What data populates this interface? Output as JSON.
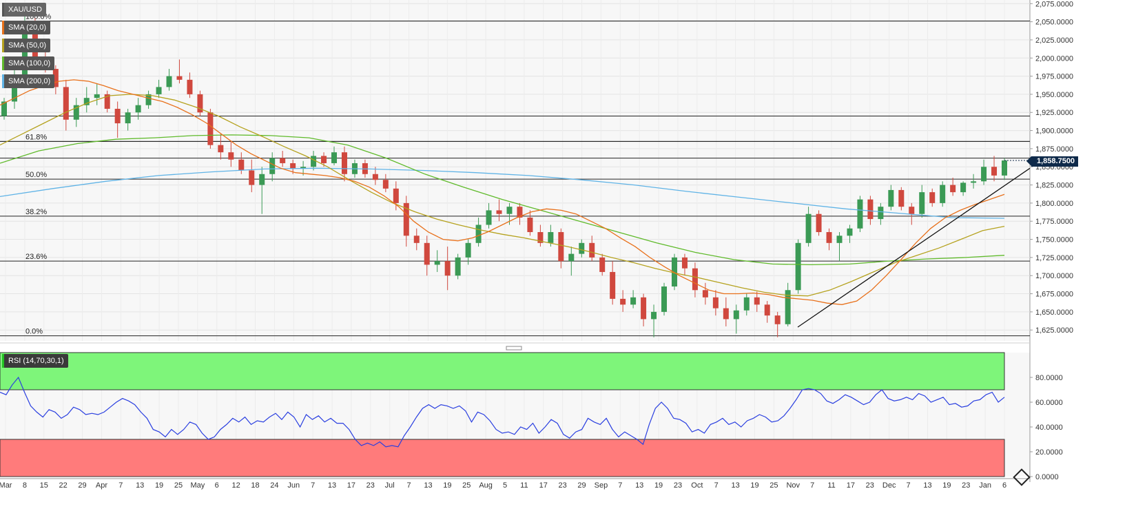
{
  "chart_data": [
    {
      "type": "candlestick",
      "symbol": "XAU/USD",
      "indicators": [
        {
          "label": "SMA (20,0)",
          "color": "#e8701a"
        },
        {
          "label": "SMA (50,0)",
          "color": "#b5a21e"
        },
        {
          "label": "SMA (100,0)",
          "color": "#5fba2a"
        },
        {
          "label": "SMA (200,0)",
          "color": "#5fb3e6"
        }
      ],
      "ylim": [
        1610,
        2080
      ],
      "y_ticks": [
        "2,075.0000",
        "2,050.0000",
        "2,025.0000",
        "2,000.0000",
        "1,975.0000",
        "1,950.0000",
        "1,925.0000",
        "1,900.0000",
        "1,875.0000",
        "1,850.0000",
        "1,825.0000",
        "1,800.0000",
        "1,775.0000",
        "1,750.0000",
        "1,725.0000",
        "1,700.0000",
        "1,675.0000",
        "1,650.0000",
        "1,625.0000"
      ],
      "x_tick_labels": [
        "Mar",
        "8",
        "15",
        "22",
        "29",
        "Apr",
        "7",
        "13",
        "19",
        "25",
        "May",
        "6",
        "12",
        "18",
        "24",
        "Jun",
        "7",
        "13",
        "17",
        "23",
        "Jul",
        "7",
        "13",
        "19",
        "25",
        "Aug",
        "5",
        "11",
        "17",
        "23",
        "29",
        "Sep",
        "7",
        "13",
        "19",
        "23",
        "Oct",
        "7",
        "13",
        "19",
        "25",
        "Nov",
        "7",
        "11",
        "17",
        "23",
        "Dec",
        "7",
        "13",
        "19",
        "23",
        "Jan",
        "6"
      ],
      "last_price": {
        "label": "1,858.7500",
        "value": 1858.75
      },
      "horizontal_levels": [
        2051,
        1920,
        1885,
        1862
      ],
      "fibonacci": [
        {
          "label": "100.0%",
          "value": 2051
        },
        {
          "label": "61.8%",
          "value": 1885
        },
        {
          "label": "50.0%",
          "value": 1833
        },
        {
          "label": "38.2%",
          "value": 1782
        },
        {
          "label": "23.6%",
          "value": 1720
        },
        {
          "label": "0.0%",
          "value": 1617
        }
      ],
      "trendline": [
        [
          1629,
          1630
        ],
        [
          1870,
          1848
        ]
      ],
      "candles_ohlc": [
        [
          1920,
          1945,
          1915,
          1940
        ],
        [
          1940,
          1985,
          1930,
          1975
        ],
        [
          1975,
          2070,
          1960,
          2050
        ],
        [
          2050,
          2055,
          1995,
          2000
        ],
        [
          2000,
          2010,
          1980,
          1985
        ],
        [
          1985,
          1990,
          1950,
          1960
        ],
        [
          1960,
          1970,
          1900,
          1915
        ],
        [
          1915,
          1945,
          1905,
          1935
        ],
        [
          1935,
          1960,
          1925,
          1945
        ],
        [
          1945,
          1965,
          1935,
          1950
        ],
        [
          1950,
          1955,
          1925,
          1930
        ],
        [
          1930,
          1940,
          1890,
          1910
        ],
        [
          1910,
          1930,
          1900,
          1925
        ],
        [
          1925,
          1945,
          1915,
          1935
        ],
        [
          1935,
          1955,
          1930,
          1950
        ],
        [
          1950,
          1970,
          1945,
          1960
        ],
        [
          1960,
          1985,
          1955,
          1975
        ],
        [
          1975,
          1998,
          1965,
          1970
        ],
        [
          1970,
          1980,
          1945,
          1950
        ],
        [
          1950,
          1955,
          1920,
          1925
        ],
        [
          1925,
          1930,
          1875,
          1880
        ],
        [
          1880,
          1895,
          1860,
          1870
        ],
        [
          1870,
          1885,
          1850,
          1860
        ],
        [
          1860,
          1870,
          1840,
          1845
        ],
        [
          1845,
          1860,
          1815,
          1825
        ],
        [
          1825,
          1850,
          1785,
          1840
        ],
        [
          1840,
          1870,
          1830,
          1862
        ],
        [
          1862,
          1872,
          1850,
          1855
        ],
        [
          1855,
          1860,
          1840,
          1848
        ],
        [
          1848,
          1858,
          1838,
          1850
        ],
        [
          1850,
          1872,
          1845,
          1865
        ],
        [
          1865,
          1870,
          1850,
          1855
        ],
        [
          1855,
          1878,
          1852,
          1870
        ],
        [
          1870,
          1878,
          1830,
          1840
        ],
        [
          1840,
          1860,
          1835,
          1855
        ],
        [
          1855,
          1860,
          1835,
          1840
        ],
        [
          1840,
          1850,
          1825,
          1832
        ],
        [
          1832,
          1840,
          1815,
          1820
        ],
        [
          1820,
          1830,
          1790,
          1800
        ],
        [
          1800,
          1810,
          1740,
          1755
        ],
        [
          1755,
          1765,
          1735,
          1745
        ],
        [
          1745,
          1755,
          1700,
          1715
        ],
        [
          1715,
          1735,
          1705,
          1720
        ],
        [
          1720,
          1740,
          1680,
          1700
        ],
        [
          1700,
          1730,
          1695,
          1725
        ],
        [
          1725,
          1750,
          1715,
          1745
        ],
        [
          1745,
          1780,
          1740,
          1770
        ],
        [
          1770,
          1800,
          1765,
          1790
        ],
        [
          1790,
          1805,
          1775,
          1785
        ],
        [
          1785,
          1800,
          1770,
          1795
        ],
        [
          1795,
          1800,
          1770,
          1780
        ],
        [
          1780,
          1790,
          1755,
          1760
        ],
        [
          1760,
          1770,
          1740,
          1745
        ],
        [
          1745,
          1770,
          1740,
          1760
        ],
        [
          1760,
          1765,
          1710,
          1720
        ],
        [
          1720,
          1740,
          1700,
          1730
        ],
        [
          1730,
          1750,
          1725,
          1745
        ],
        [
          1745,
          1755,
          1720,
          1725
        ],
        [
          1725,
          1730,
          1700,
          1705
        ],
        [
          1705,
          1720,
          1660,
          1668
        ],
        [
          1668,
          1680,
          1650,
          1660
        ],
        [
          1660,
          1680,
          1655,
          1670
        ],
        [
          1670,
          1675,
          1630,
          1640
        ],
        [
          1640,
          1660,
          1615,
          1650
        ],
        [
          1650,
          1690,
          1645,
          1685
        ],
        [
          1685,
          1730,
          1680,
          1725
        ],
        [
          1725,
          1730,
          1700,
          1710
        ],
        [
          1710,
          1718,
          1670,
          1680
        ],
        [
          1680,
          1690,
          1660,
          1670
        ],
        [
          1670,
          1680,
          1645,
          1655
        ],
        [
          1655,
          1670,
          1630,
          1640
        ],
        [
          1640,
          1660,
          1620,
          1652
        ],
        [
          1652,
          1675,
          1645,
          1670
        ],
        [
          1670,
          1678,
          1650,
          1660
        ],
        [
          1660,
          1665,
          1635,
          1645
        ],
        [
          1645,
          1650,
          1615,
          1633
        ],
        [
          1633,
          1690,
          1630,
          1680
        ],
        [
          1680,
          1750,
          1675,
          1745
        ],
        [
          1745,
          1795,
          1740,
          1785
        ],
        [
          1785,
          1790,
          1755,
          1760
        ],
        [
          1760,
          1765,
          1735,
          1745
        ],
        [
          1745,
          1760,
          1720,
          1755
        ],
        [
          1755,
          1770,
          1745,
          1765
        ],
        [
          1765,
          1810,
          1760,
          1805
        ],
        [
          1805,
          1810,
          1770,
          1778
        ],
        [
          1778,
          1800,
          1770,
          1795
        ],
        [
          1795,
          1825,
          1790,
          1818
        ],
        [
          1818,
          1822,
          1790,
          1795
        ],
        [
          1795,
          1800,
          1770,
          1785
        ],
        [
          1785,
          1825,
          1780,
          1815
        ],
        [
          1815,
          1820,
          1795,
          1800
        ],
        [
          1800,
          1830,
          1795,
          1825
        ],
        [
          1825,
          1835,
          1810,
          1815
        ],
        [
          1815,
          1830,
          1810,
          1828
        ],
        [
          1828,
          1840,
          1820,
          1830
        ],
        [
          1830,
          1860,
          1825,
          1850
        ],
        [
          1850,
          1865,
          1830,
          1838
        ],
        [
          1838,
          1862,
          1832,
          1858.75
        ]
      ],
      "sma20": [
        1935,
        1945,
        1955,
        1962,
        1968,
        1970,
        1968,
        1962,
        1955,
        1950,
        1945,
        1940,
        1932,
        1922,
        1910,
        1895,
        1880,
        1868,
        1858,
        1848,
        1842,
        1840,
        1838,
        1835,
        1830,
        1822,
        1810,
        1795,
        1775,
        1760,
        1750,
        1748,
        1752,
        1760,
        1770,
        1780,
        1788,
        1792,
        1790,
        1785,
        1775,
        1765,
        1752,
        1740,
        1725,
        1712,
        1700,
        1690,
        1680,
        1675,
        1675,
        1676,
        1674,
        1670,
        1668,
        1666,
        1662,
        1660,
        1665,
        1680,
        1700,
        1722,
        1745,
        1765,
        1780,
        1790,
        1798,
        1805,
        1812
      ],
      "sma50": [
        1880,
        1895,
        1910,
        1925,
        1938,
        1948,
        1950,
        1948,
        1942,
        1932,
        1920,
        1905,
        1892,
        1878,
        1865,
        1850,
        1832,
        1815,
        1800,
        1788,
        1778,
        1770,
        1763,
        1757,
        1752,
        1746,
        1740,
        1733,
        1725,
        1718,
        1710,
        1703,
        1697,
        1690,
        1683,
        1677,
        1673,
        1672,
        1680,
        1692,
        1705,
        1718,
        1728,
        1738,
        1750,
        1762,
        1768
      ],
      "sma100": [
        1855,
        1872,
        1882,
        1888,
        1890,
        1893,
        1894,
        1893,
        1890,
        1880,
        1862,
        1840,
        1822,
        1805,
        1790,
        1775,
        1760,
        1745,
        1732,
        1722,
        1716,
        1715,
        1716,
        1720,
        1723,
        1725,
        1728
      ],
      "sma200": [
        1809,
        1820,
        1830,
        1838,
        1843,
        1847,
        1848,
        1847,
        1845,
        1842,
        1838,
        1832,
        1825,
        1816,
        1808,
        1800,
        1792,
        1786,
        1780,
        1779
      ]
    },
    {
      "type": "line",
      "indicator": "RSI (14,70,30,1)",
      "ylim": [
        0,
        100
      ],
      "y_ticks": [
        "80.0000",
        "60.0000",
        "40.0000",
        "20.0000",
        "0.0000"
      ],
      "overbought": 70,
      "oversold": 30,
      "values": [
        68,
        66,
        74,
        80,
        68,
        57,
        52,
        48,
        54,
        52,
        47,
        50,
        56,
        54,
        50,
        51,
        50,
        52,
        56,
        60,
        63,
        61,
        58,
        52,
        47,
        38,
        36,
        32,
        38,
        34,
        38,
        44,
        42,
        35,
        30,
        32,
        38,
        42,
        47,
        44,
        48,
        42,
        45,
        44,
        48,
        51,
        46,
        52,
        48,
        40,
        50,
        46,
        49,
        44,
        47,
        43,
        43,
        38,
        30,
        25,
        27,
        25,
        28,
        24,
        25,
        24,
        33,
        40,
        48,
        55,
        58,
        55,
        58,
        57,
        55,
        57,
        53,
        44,
        52,
        50,
        45,
        38,
        35,
        36,
        34,
        40,
        38,
        43,
        35,
        40,
        46,
        43,
        34,
        31,
        36,
        38,
        47,
        44,
        42,
        47,
        38,
        32,
        36,
        33,
        30,
        26,
        42,
        55,
        60,
        55,
        47,
        46,
        43,
        36,
        38,
        35,
        42,
        44,
        47,
        42,
        44,
        40,
        45,
        47,
        50,
        48,
        44,
        45,
        49,
        55,
        62,
        70,
        71,
        70,
        67,
        61,
        59,
        62,
        66,
        64,
        61,
        58,
        60,
        66,
        70,
        63,
        61,
        62,
        64,
        62,
        67,
        65,
        60,
        62,
        64,
        58,
        59,
        56,
        57,
        61,
        62,
        66,
        68,
        60,
        64
      ]
    }
  ]
}
